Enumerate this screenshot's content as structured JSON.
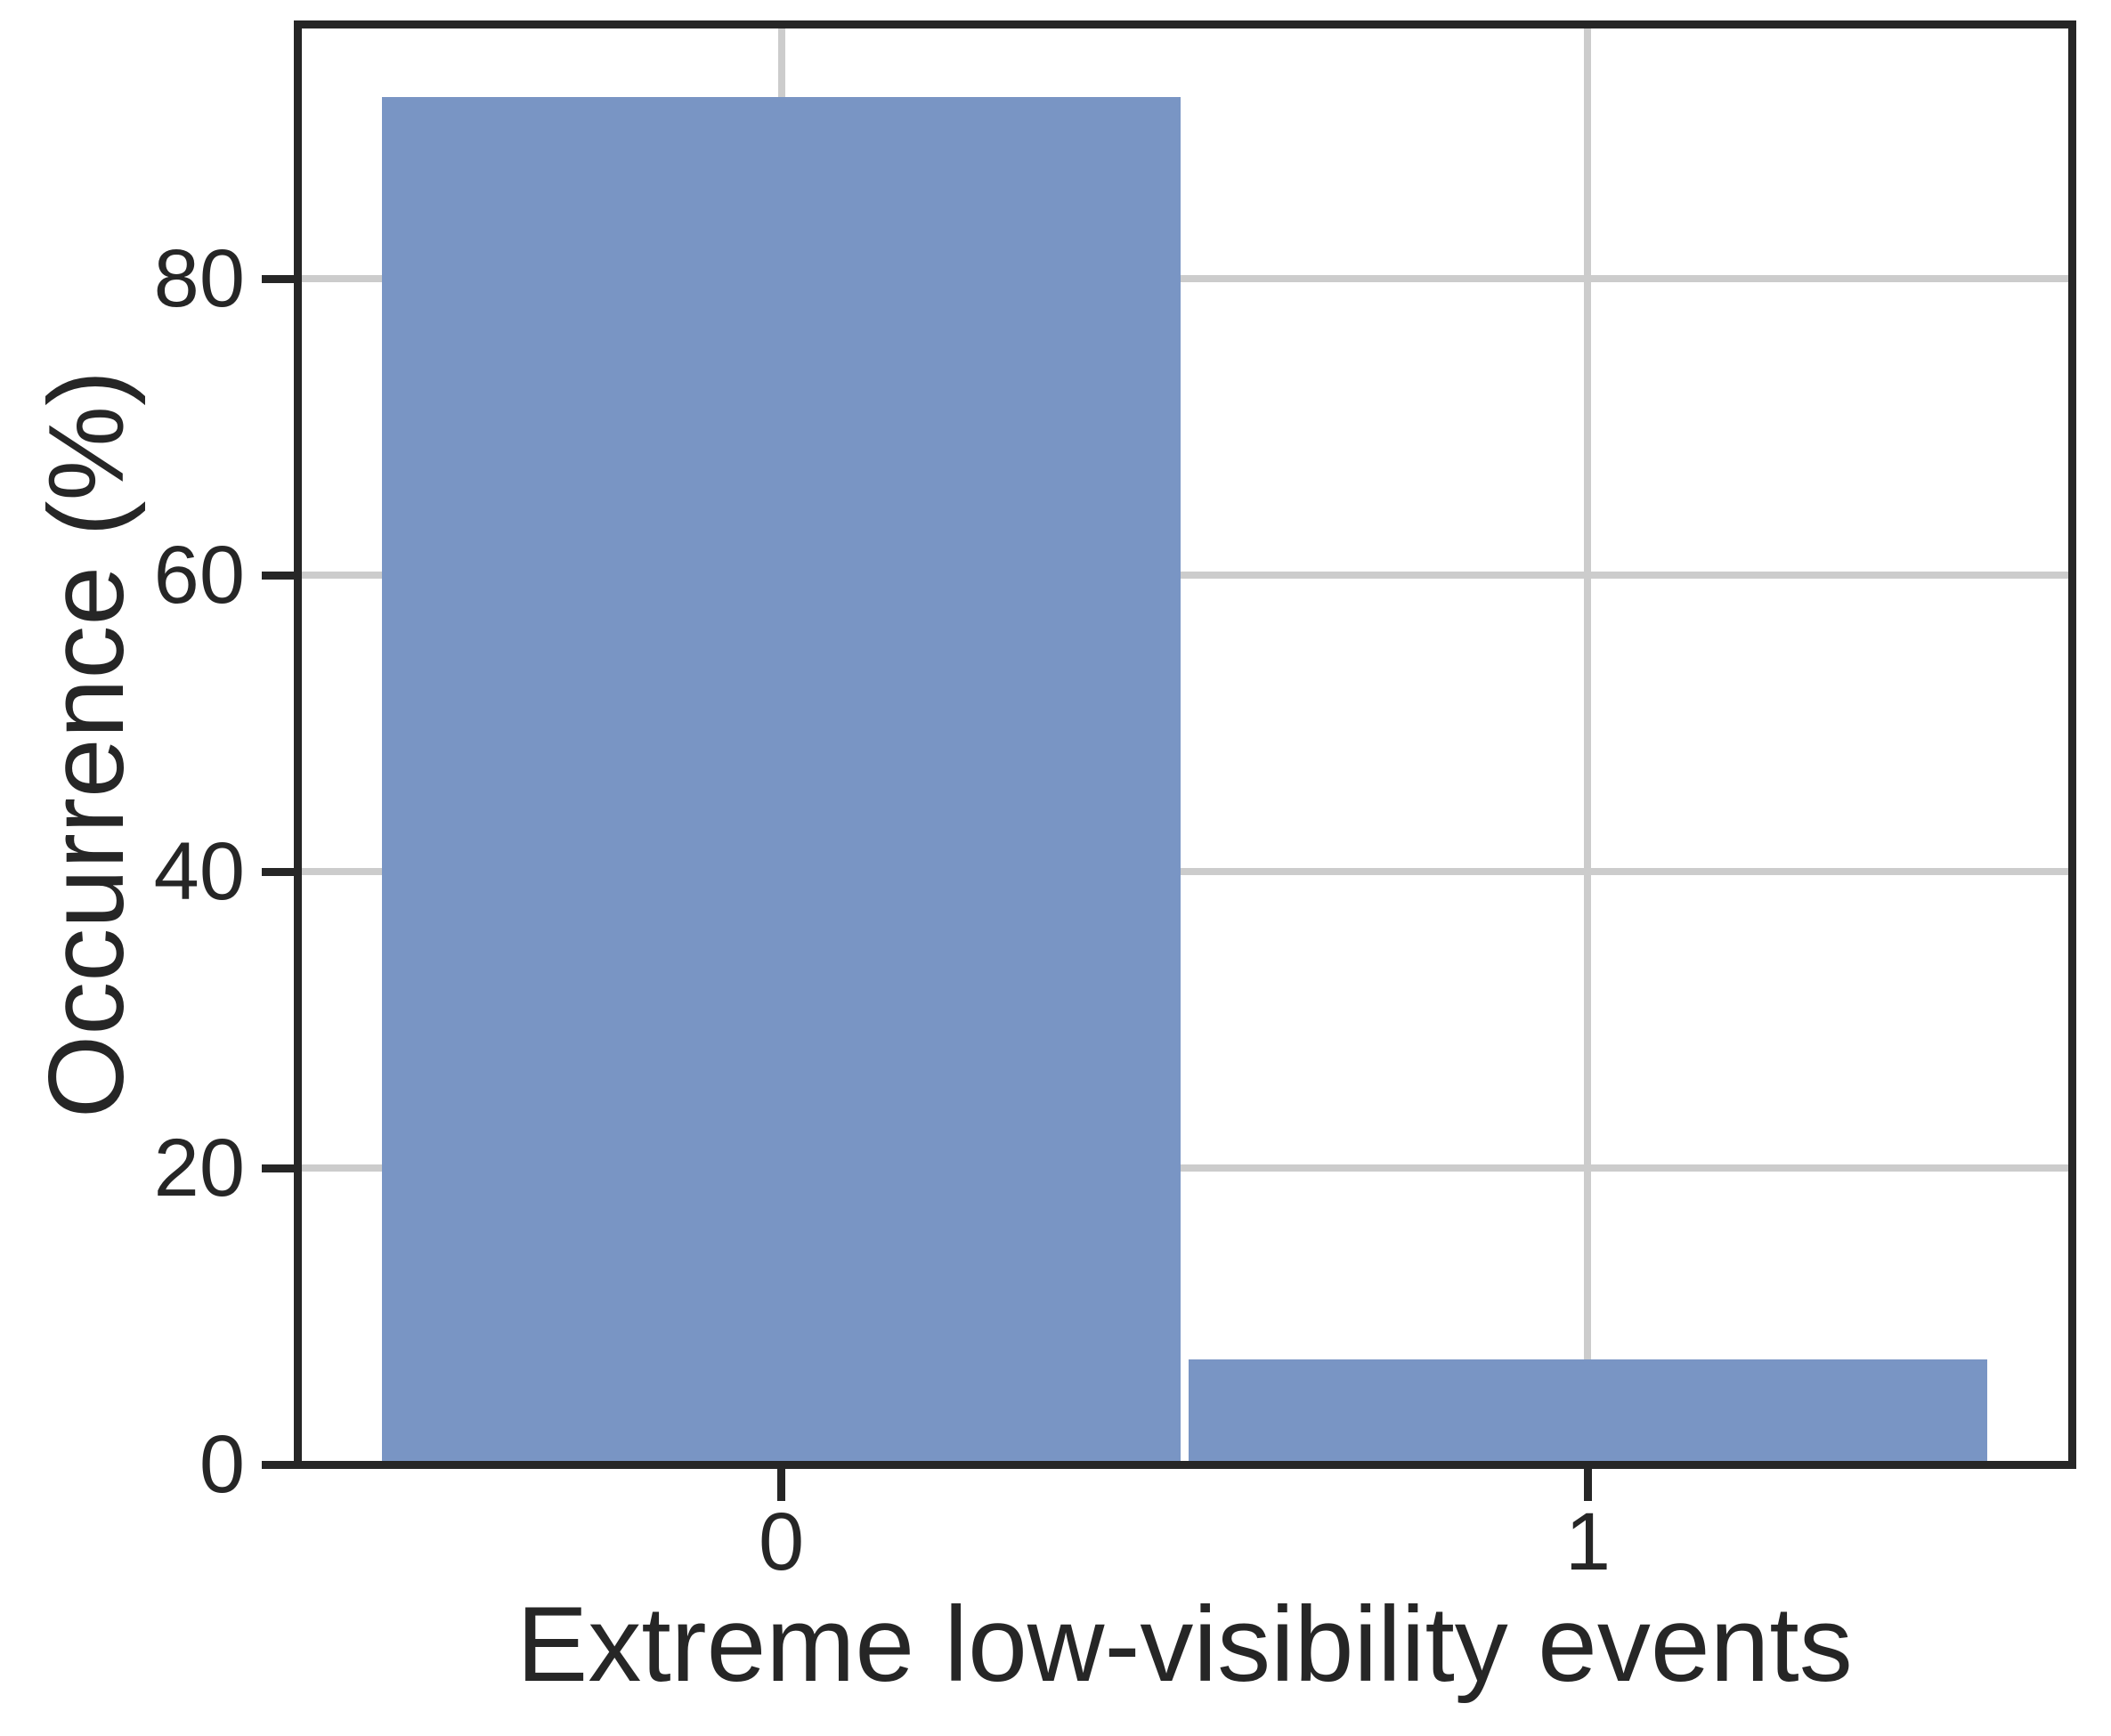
{
  "chart_data": {
    "type": "bar",
    "title": "",
    "xlabel": "Extreme low-visibility events",
    "ylabel": "Occurrence (%)",
    "categories": [
      "0",
      "1"
    ],
    "values": [
      92.3,
      7.1
    ],
    "series": [
      {
        "name": "Occurrence (%)",
        "values": [
          92.3,
          7.1
        ]
      }
    ],
    "category_positions": [
      0,
      1
    ],
    "bar_width": 0.99,
    "xlim": [
      -0.6,
      1.6
    ],
    "ylim": [
      0,
      97.2
    ],
    "yticks": [
      0,
      20,
      40,
      60,
      80
    ],
    "ytick_labels": [
      "0",
      "20",
      "40",
      "60",
      "80"
    ],
    "grid": "on",
    "grid_axes": "both-at-ticks",
    "legend": "none",
    "colors": {
      "bar_fill": "#7995c4",
      "frame": "#262626",
      "text": "#262626",
      "gridline": "#cccccc",
      "background": "#ffffff"
    }
  }
}
